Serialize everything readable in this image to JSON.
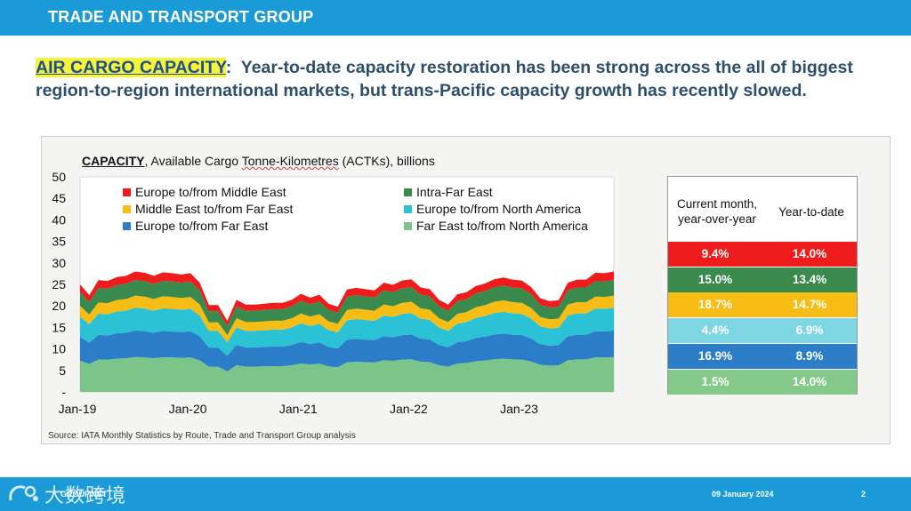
{
  "header": {
    "title": "TRADE AND TRANSPORT GROUP"
  },
  "headline": {
    "highlight": "AIR CARGO CAPACITY",
    "colon": ":",
    "text": "Year-to-date capacity restoration has been strong across the all of biggest region-to-region international markets, but trans-Pacific capacity growth has recently slowed."
  },
  "chart_title": {
    "bold": "CAPACITY",
    "part1": ", Available Cargo ",
    "underlined": "Tonne-Kilometres",
    "part2": " (ACTKs), billions"
  },
  "source": "Source: IATA Monthly Statistics by Route, Trade and Transport Group analysis",
  "table": {
    "col1_header": "Current month, year-over-year",
    "col2_header": "Year-to-date",
    "rows": [
      {
        "name": "Europe to/from Middle East",
        "yoy": "9.4%",
        "ytd": "14.0%",
        "color": "#ee1c1c"
      },
      {
        "name": "Intra-Far East",
        "yoy": "15.0%",
        "ytd": "13.4%",
        "color": "#3a8a4e"
      },
      {
        "name": "Middle East to/from Far East",
        "yoy": "18.7%",
        "ytd": "14.7%",
        "color": "#f7bd15"
      },
      {
        "name": "Europe to/from North America",
        "yoy": "4.4%",
        "ytd": "6.9%",
        "color": "#7fd6e3"
      },
      {
        "name": "Europe to/from Far East",
        "yoy": "16.9%",
        "ytd": "8.9%",
        "color": "#2b7dc8"
      },
      {
        "name": "Far East to/from North America",
        "yoy": "1.5%",
        "ytd": "14.0%",
        "color": "#85c98a"
      }
    ]
  },
  "chart_data": {
    "type": "area",
    "stacked": true,
    "title": "CAPACITY, Available Cargo Tonne-Kilometres (ACTKs), billions",
    "xlabel": "",
    "ylabel": "",
    "ylim": [
      0,
      50
    ],
    "ytick_labels": [
      "-",
      "5",
      "10",
      "15",
      "20",
      "25",
      "30",
      "35",
      "40",
      "45",
      "50"
    ],
    "x_start": "Jan-19",
    "x_tick_labels": [
      "Jan-19",
      "Jan-20",
      "Jan-21",
      "Jan-22",
      "Jan-23"
    ],
    "x_tick_index": [
      0,
      12,
      24,
      36,
      48
    ],
    "months": 59,
    "legend_position": "top-left",
    "totals": [
      25,
      22.5,
      26,
      25.8,
      26.7,
      27,
      28,
      27.7,
      27,
      27.8,
      27.6,
      27.3,
      27.6,
      25.4,
      20.2,
      20.2,
      16.5,
      21.4,
      20.3,
      20.3,
      20.5,
      20.7,
      20.7,
      21.4,
      22.8,
      21.9,
      22.6,
      20.5,
      19.8,
      23.8,
      24.2,
      23.9,
      23.6,
      25.4,
      24.9,
      25.9,
      26.2,
      24.3,
      23.9,
      21.4,
      20.3,
      22.7,
      23.2,
      24.6,
      25.2,
      26.2,
      26.6,
      26.1,
      25.9,
      24.4,
      21.8,
      21.1,
      21.3,
      25.4,
      26.1,
      26.1,
      27.7,
      27.6,
      28.0
    ],
    "series": [
      {
        "name": "Europe to/from Middle East",
        "color": "#ee1c1c",
        "share": 0.07
      },
      {
        "name": "Intra-Far East",
        "color": "#3a8a4e",
        "share": 0.13
      },
      {
        "name": "Middle East to/from Far East",
        "color": "#f7bd15",
        "share": 0.1
      },
      {
        "name": "Europe to/from North America",
        "color": "#2bc2d6",
        "share": 0.19
      },
      {
        "name": "Europe to/from Far East",
        "color": "#2b7dc8",
        "share": 0.22
      },
      {
        "name": "Far East to/from North America",
        "color": "#7cc58a",
        "share": 0.29
      }
    ],
    "legend_order": [
      "Europe to/from Middle East",
      "Intra-Far East",
      "Middle East to/from Far East",
      "Europe to/from North America",
      "Europe to/from Far East",
      "Far East to/from North America"
    ]
  },
  "footer": {
    "url": "GROUP.NET",
    "date": "09 January 2024",
    "page": "2",
    "watermark": "大数跨境"
  }
}
